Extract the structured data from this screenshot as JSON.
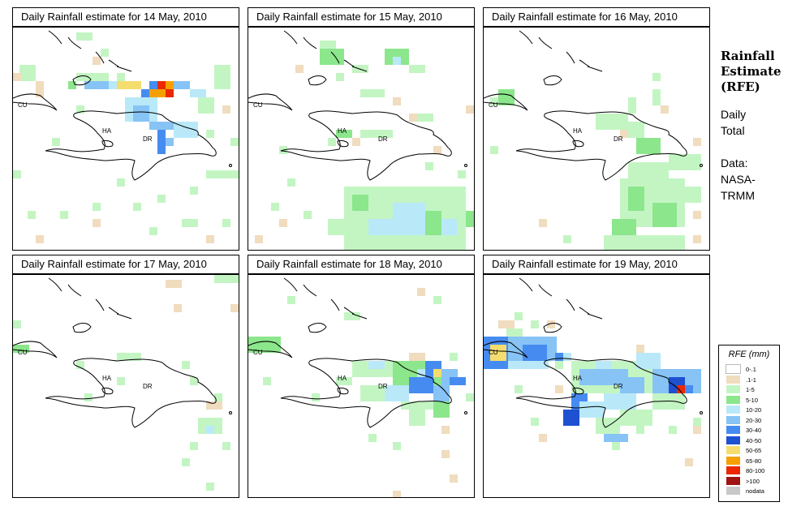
{
  "panels": [
    {
      "title": "Daily Rainfall estimate for  14 May, 2010"
    },
    {
      "title": "Daily Rainfall estimate for  15 May, 2010"
    },
    {
      "title": "Daily Rainfall estimate for  16 May, 2010"
    },
    {
      "title": "Daily Rainfall estimate for  17 May, 2010"
    },
    {
      "title": "Daily Rainfall estimate for  18 May, 2010"
    },
    {
      "title": "Daily Rainfall estimate for  19 May, 2010"
    }
  ],
  "map_labels": {
    "cu": "CU",
    "ha": "HA",
    "dr": "DR"
  },
  "right_text": {
    "title_line1": "Rainfall",
    "title_line2": "Estimate",
    "title_line3": "(RFE)",
    "daily": "Daily",
    "total": "Total",
    "data_label": "Data:",
    "source1": "NASA-",
    "source2": "TRMM"
  },
  "legend": {
    "title": "RFE (mm)",
    "items": [
      {
        "label": "0-.1",
        "color": "#ffffff"
      },
      {
        "label": ".1-1",
        "color": "#f0dcbe"
      },
      {
        "label": "1-5",
        "color": "#c3f5c3"
      },
      {
        "label": "5-10",
        "color": "#8ce68c"
      },
      {
        "label": "10-20",
        "color": "#b9e9f8"
      },
      {
        "label": "20-30",
        "color": "#87c3f5"
      },
      {
        "label": "30-40",
        "color": "#468cf0"
      },
      {
        "label": "40-50",
        "color": "#1e50d2"
      },
      {
        "label": "50-65",
        "color": "#f5dc6e"
      },
      {
        "label": "65-80",
        "color": "#f5a000"
      },
      {
        "label": "80-100",
        "color": "#eb2800"
      },
      {
        "label": ">100",
        "color": "#a01414"
      },
      {
        "label": "nodata",
        "color": "#c8c8c8"
      }
    ]
  }
}
